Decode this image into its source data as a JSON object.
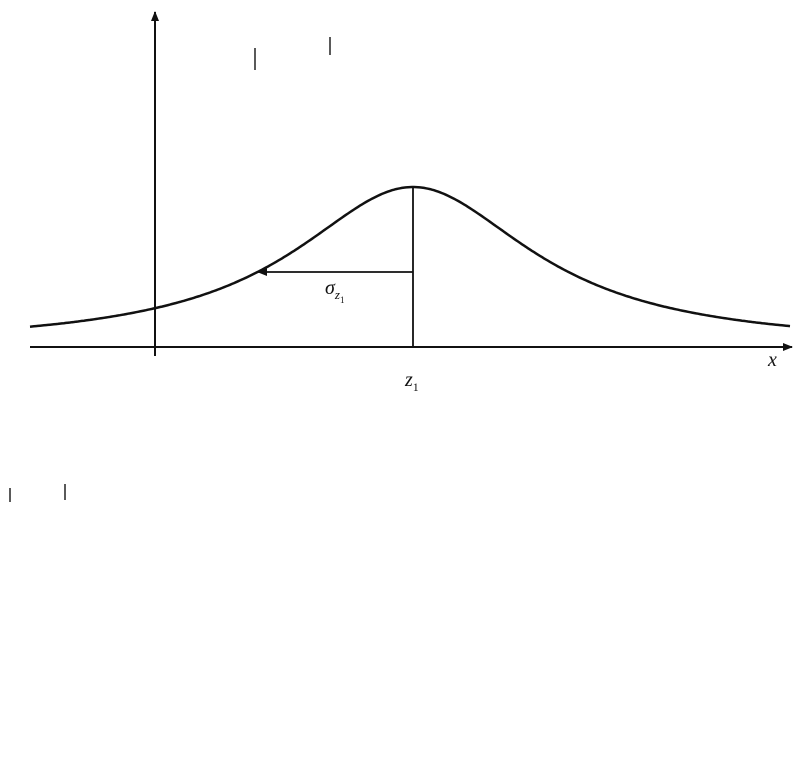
{
  "sigma_label": {
    "symbol": "σ",
    "subscript": "z",
    "sub_subscript": "1"
  },
  "mean_label": {
    "symbol": "z",
    "subscript": "1"
  },
  "x_axis_label": "x"
}
